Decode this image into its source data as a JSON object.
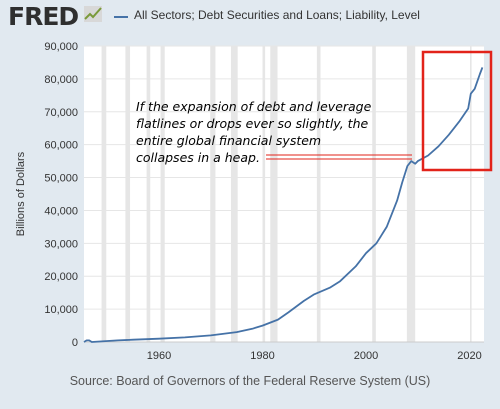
{
  "header": {
    "logo_text": "FRED",
    "logo_mark_icon": "trend-line-icon",
    "legend_label": "All Sectors; Debt Securities and Loans; Liability, Level"
  },
  "annotation": {
    "text": "If the expansion of debt and leverage flatlines or drops ever so slightly, the entire global financial system collapses in a heap."
  },
  "footer": {
    "source": "Source: Board of Governors of the Federal Reserve System (US)"
  },
  "colors": {
    "background": "#e1e9f0",
    "plot_background": "#ffffff",
    "series": "#4572a7",
    "recession": "#e6e6e6",
    "highlight_box": "#e2231a",
    "pointer": "#e2231a"
  },
  "chart_data": {
    "type": "line",
    "title": "",
    "xlabel": "",
    "ylabel": "Billions of Dollars",
    "xlim": [
      1945.5,
      2022.8
    ],
    "ylim": [
      0,
      90000
    ],
    "y_ticks": [
      0,
      10000,
      20000,
      30000,
      40000,
      50000,
      60000,
      70000,
      80000,
      90000
    ],
    "y_tick_labels": [
      "0",
      "10,000",
      "20,000",
      "30,000",
      "40,000",
      "50,000",
      "60,000",
      "70,000",
      "80,000",
      "90,000"
    ],
    "x_ticks": [
      1960,
      1980,
      2000,
      2020
    ],
    "x_tick_labels": [
      "1960",
      "1980",
      "2000",
      "2020"
    ],
    "grid": true,
    "legend": "top",
    "recessions": [
      [
        1948.9,
        1949.8
      ],
      [
        1953.5,
        1954.4
      ],
      [
        1957.6,
        1958.3
      ],
      [
        1960.3,
        1961.1
      ],
      [
        1969.9,
        1970.9
      ],
      [
        1973.9,
        1975.2
      ],
      [
        1980.0,
        1980.5
      ],
      [
        1981.5,
        1982.9
      ],
      [
        1990.5,
        1991.2
      ],
      [
        2001.2,
        2001.9
      ],
      [
        2007.9,
        2009.5
      ],
      [
        2020.1,
        2020.4
      ]
    ],
    "series": [
      {
        "name": "All Sectors; Debt Securities and Loans; Liability, Level",
        "x": [
          1945.5,
          1946,
          1946.5,
          1947,
          1952,
          1955,
          1960,
          1965,
          1970,
          1975,
          1978,
          1980,
          1983,
          1985,
          1988,
          1990,
          1993,
          1995,
          1998,
          2000,
          2002,
          2004,
          2006,
          2007,
          2008,
          2008.75,
          2009.5,
          2010,
          2012,
          2014,
          2016,
          2018,
          2019.75,
          2020.25,
          2021,
          2022,
          2022.5
        ],
        "values": [
          0,
          500,
          500,
          0,
          500,
          700,
          1000,
          1400,
          2000,
          3000,
          4000,
          5000,
          6800,
          9000,
          12500,
          14500,
          16500,
          18500,
          23000,
          27000,
          30000,
          35000,
          43000,
          48500,
          53500,
          55000,
          54200,
          55000,
          56700,
          59500,
          63000,
          67000,
          71000,
          75500,
          77000,
          81500,
          83500
        ]
      }
    ]
  }
}
